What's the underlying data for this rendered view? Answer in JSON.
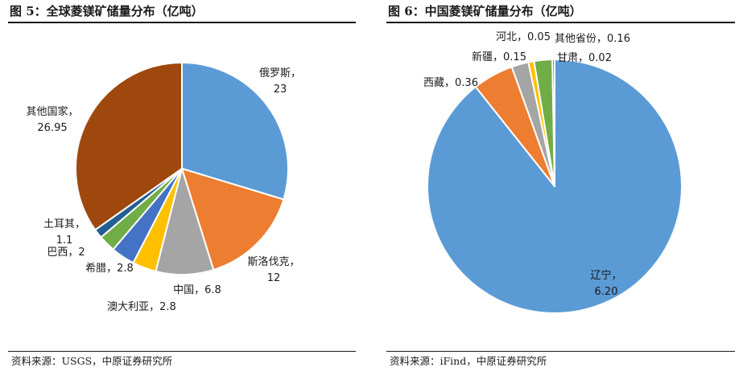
{
  "charts": [
    {
      "title": "图 5：全球菱镁矿储量分布（亿吨）",
      "source": "资料来源：USGS，中原证券研究所"
    },
    {
      "title": "图 6：中国菱镁矿储量分布（亿吨）",
      "source": "资料来源：iFind，中原证券研究所"
    }
  ],
  "chart_data": [
    {
      "type": "pie",
      "title": "图 5：全球菱镁矿储量分布（亿吨）",
      "unit": "亿吨",
      "slices": [
        {
          "label": "俄罗斯",
          "value": 23,
          "display": "23",
          "color": "#5B9BD5",
          "label_style": "stacked"
        },
        {
          "label": "斯洛伐克",
          "value": 12,
          "display": "12",
          "color": "#ED7D31",
          "label_style": "stacked"
        },
        {
          "label": "中国",
          "value": 6.8,
          "display": "6.8",
          "color": "#A5A5A5",
          "label_style": "inline"
        },
        {
          "label": "澳大利亚",
          "value": 2.8,
          "display": "2.8",
          "color": "#FFC000",
          "label_style": "inline"
        },
        {
          "label": "希腊",
          "value": 2.8,
          "display": "2.8",
          "color": "#4472C4",
          "label_style": "inline"
        },
        {
          "label": "巴西",
          "value": 2,
          "display": "2",
          "color": "#70AD47",
          "label_style": "inline"
        },
        {
          "label": "土耳其",
          "value": 1.1,
          "display": "1.1",
          "color": "#255E91",
          "label_style": "stacked"
        },
        {
          "label": "其他国家",
          "value": 26.95,
          "display": "26.95",
          "color": "#9E480E",
          "label_style": "stacked"
        }
      ]
    },
    {
      "type": "pie",
      "title": "图 6：中国菱镁矿储量分布（亿吨）",
      "unit": "亿吨",
      "slices": [
        {
          "label": "辽宁",
          "value": 6.2,
          "display": "6.20",
          "color": "#5B9BD5",
          "label_style": "stacked"
        },
        {
          "label": "西藏",
          "value": 0.36,
          "display": "0.36",
          "color": "#ED7D31",
          "label_style": "inline"
        },
        {
          "label": "新疆",
          "value": 0.15,
          "display": "0.15",
          "color": "#A5A5A5",
          "label_style": "inline"
        },
        {
          "label": "河北",
          "value": 0.05,
          "display": "0.05",
          "color": "#FFC000",
          "label_style": "inline"
        },
        {
          "label": "其他省份",
          "value": 0.16,
          "display": "0.16",
          "color": "#70AD47",
          "label_style": "inline"
        },
        {
          "label": "甘肃",
          "value": 0.02,
          "display": "0.02",
          "color": "#4472C4",
          "label_style": "inline"
        }
      ]
    }
  ]
}
